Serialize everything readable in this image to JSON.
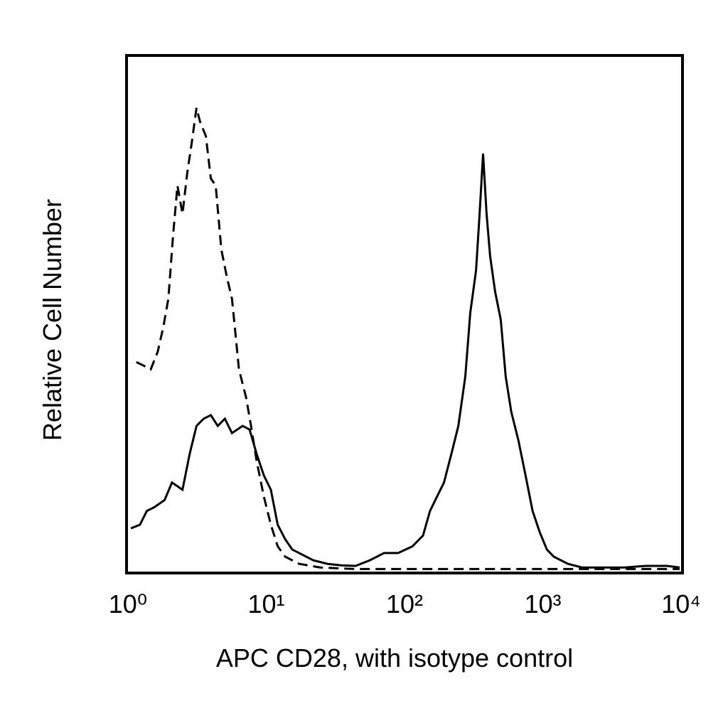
{
  "chart_data": {
    "type": "histogram-line",
    "x_label": "APC CD28, with isotype control",
    "y_label": "Relative Cell Number",
    "x_log": true,
    "xlim": [
      1,
      10000
    ],
    "xticks": [
      {
        "value": 1,
        "label": "10⁰"
      },
      {
        "value": 10,
        "label": "10¹"
      },
      {
        "value": 100,
        "label": "10²"
      },
      {
        "value": 1000,
        "label": "10³"
      },
      {
        "value": 10000,
        "label": "10⁴"
      }
    ],
    "ylim": [
      0,
      100
    ],
    "series": [
      {
        "color": "#000000",
        "dashed": false,
        "x": [
          1.05,
          1.22,
          1.37,
          1.55,
          1.84,
          2.08,
          2.48,
          2.79,
          3.13,
          3.53,
          3.97,
          4.46,
          5.02,
          5.65,
          6.74,
          7.58,
          8.53,
          9.6,
          10.8,
          12.1,
          13.7,
          15.4,
          17.3,
          21.9,
          27.7,
          35.0,
          44.3,
          56.1,
          71.1,
          89.9,
          114,
          136,
          153,
          172,
          193,
          218,
          245,
          275,
          299,
          329,
          349,
          370,
          392,
          416,
          452,
          497,
          539,
          592,
          666,
          750,
          843,
          949,
          1070,
          1200,
          1520,
          1920,
          2740,
          3900,
          5550,
          7900,
          9770
        ],
        "values": [
          8.4,
          9.1,
          11.8,
          12.5,
          13.9,
          17.3,
          15.9,
          22.8,
          28.3,
          29.7,
          30.4,
          28.3,
          29.7,
          26.9,
          28.3,
          27.6,
          22.8,
          18.7,
          15.9,
          9.1,
          6.3,
          4.3,
          3.6,
          2.2,
          1.5,
          1.2,
          1.1,
          2.2,
          3.6,
          3.6,
          4.9,
          7.0,
          11.8,
          14.6,
          17.3,
          22.8,
          28.3,
          37.9,
          50.3,
          58.5,
          69.5,
          81.2,
          69.5,
          61.3,
          54.4,
          48.9,
          37.9,
          31.0,
          25.5,
          18.7,
          11.8,
          7.7,
          4.3,
          2.9,
          1.5,
          0.8,
          0.8,
          0.8,
          1.1,
          1.1,
          0.8
        ]
      },
      {
        "color": "#000000",
        "dashed": true,
        "x": [
          1.15,
          1.3,
          1.46,
          1.64,
          1.8,
          1.96,
          2.12,
          2.28,
          2.48,
          2.69,
          2.89,
          3.13,
          3.32,
          3.66,
          3.97,
          4.31,
          4.73,
          5.2,
          5.65,
          5.99,
          6.35,
          7.15,
          7.76,
          8.53,
          9.6,
          10.8,
          12.1,
          13.7,
          17.3,
          24.6,
          44.3,
          114,
          468,
          1520,
          4930,
          9770
        ],
        "values": [
          40.7,
          40.0,
          39.3,
          42.7,
          47.5,
          53.0,
          65.4,
          75.0,
          69.5,
          77.7,
          83.2,
          90.1,
          87.4,
          84.6,
          76.4,
          75.0,
          62.6,
          57.1,
          53.0,
          46.2,
          39.3,
          33.8,
          28.3,
          21.4,
          14.6,
          9.1,
          4.9,
          2.9,
          1.5,
          0.8,
          0.5,
          0.5,
          0.5,
          0.5,
          0.5,
          0.5
        ]
      }
    ]
  }
}
